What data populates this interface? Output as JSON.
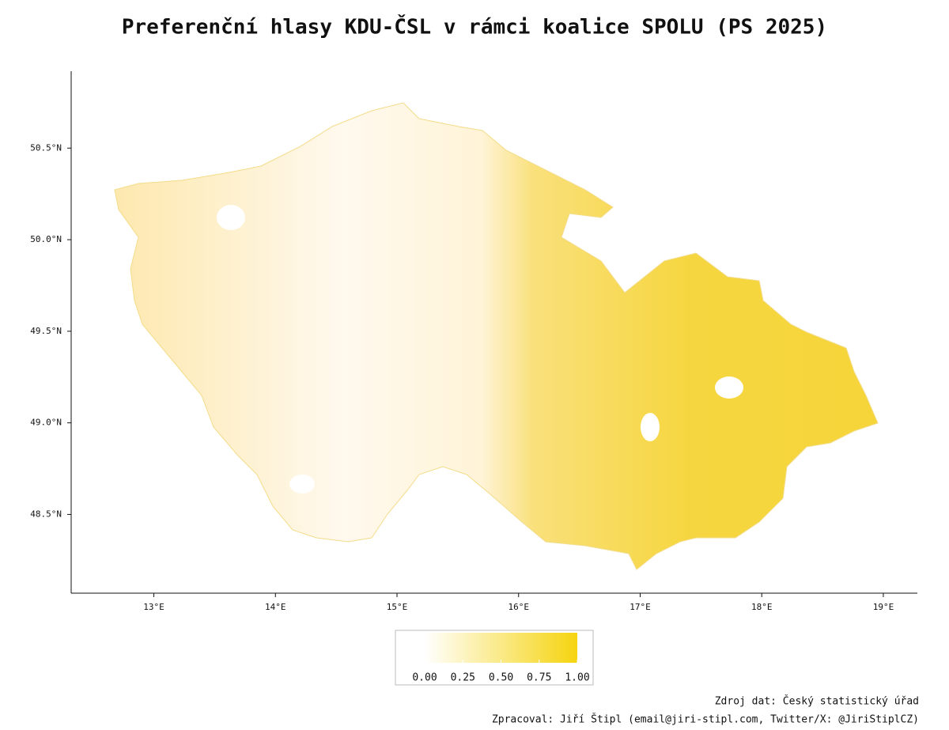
{
  "chart_data": {
    "type": "choropleth",
    "title": "Preferenční hlasy KDU-ČSL v rámci koalice SPOLU (PS 2025)",
    "xlim": [
      12.32,
      19.28
    ],
    "ylim": [
      48.07,
      50.92
    ],
    "xticks": [
      {
        "value": 13,
        "label": "13°E"
      },
      {
        "value": 14,
        "label": "14°E"
      },
      {
        "value": 15,
        "label": "15°E"
      },
      {
        "value": 16,
        "label": "16°E"
      },
      {
        "value": 17,
        "label": "17°E"
      },
      {
        "value": 18,
        "label": "18°E"
      },
      {
        "value": 19,
        "label": "19°E"
      }
    ],
    "yticks": [
      {
        "value": 48.5,
        "label": "48.5°N"
      },
      {
        "value": 49,
        "label": "49.0°N"
      },
      {
        "value": 49.5,
        "label": "49.5°N"
      },
      {
        "value": 50,
        "label": "50.0°N"
      },
      {
        "value": 50.5,
        "label": "50.5°N"
      }
    ],
    "colorbar": {
      "lim": [
        0,
        1
      ],
      "colors": [
        "#ffffff",
        "#f5d40f"
      ],
      "ticks": [
        {
          "value": 0,
          "label": "0.00"
        },
        {
          "value": 0.25,
          "label": "0.25"
        },
        {
          "value": 0.5,
          "label": "0.50"
        },
        {
          "value": 0.75,
          "label": "0.75"
        },
        {
          "value": 1,
          "label": "1.00"
        }
      ]
    },
    "source": "Zdroj dat: Český statistický úřad",
    "author": "Zpracoval: Jiří Štipl (email@jiri-stipl.com, Twitter/X: @JiriStiplCZ)"
  }
}
